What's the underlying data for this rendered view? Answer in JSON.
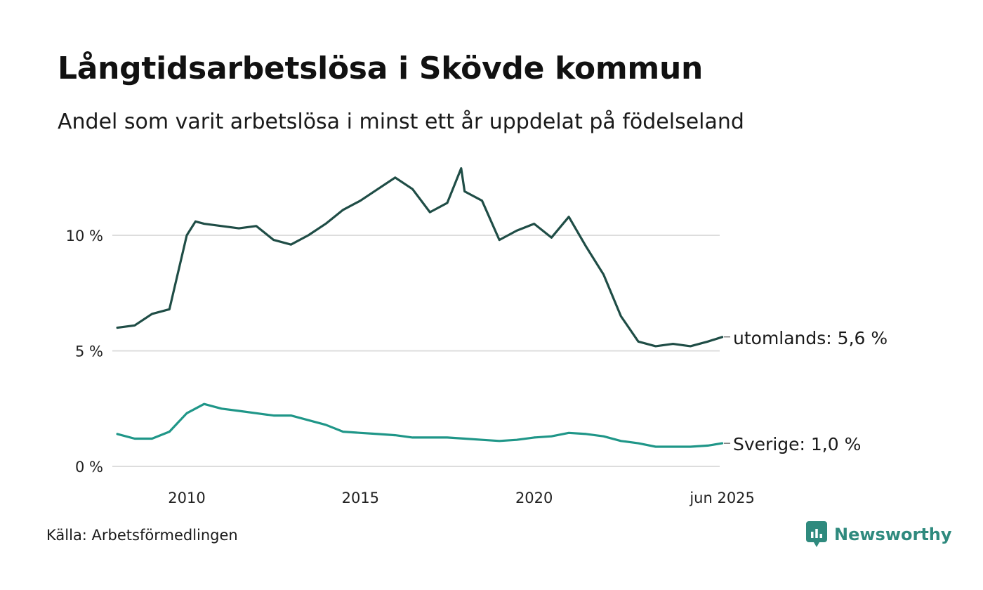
{
  "header": {
    "title": "Långtidsarbetslösa i Skövde kommun",
    "subtitle": "Andel som varit arbetslösa i minst ett år uppdelat på födelseland"
  },
  "footer": {
    "source": "Källa: Arbetsförmedlingen",
    "brand": "Newsworthy",
    "brand_icon": "newsworthy-logo-icon",
    "brand_color": "#2f8a7e"
  },
  "chart_data": {
    "type": "line",
    "x_tick_labels": [
      "2010",
      "2015",
      "2020",
      "jun 2025"
    ],
    "x_ticks": [
      2010,
      2015,
      2020,
      2025.417
    ],
    "xlim": [
      2008.0,
      2025.417
    ],
    "y_tick_labels": [
      "0 %",
      "5 %",
      "10 %"
    ],
    "y_ticks": [
      0,
      5,
      10
    ],
    "ylim": [
      0,
      13
    ],
    "grid": "horizontal",
    "legend": "direct labels at line ends",
    "series": [
      {
        "name": "utomlands",
        "end_label": "utomlands: 5,6 %",
        "color": "#1f4d46",
        "x": [
          2008.0,
          2008.5,
          2009.0,
          2009.5,
          2010.0,
          2010.25,
          2010.5,
          2011.0,
          2011.5,
          2012.0,
          2012.5,
          2013.0,
          2013.5,
          2014.0,
          2014.5,
          2015.0,
          2015.5,
          2016.0,
          2016.5,
          2017.0,
          2017.5,
          2017.9,
          2018.0,
          2018.5,
          2019.0,
          2019.5,
          2020.0,
          2020.5,
          2021.0,
          2021.5,
          2022.0,
          2022.5,
          2023.0,
          2023.5,
          2024.0,
          2024.5,
          2025.0,
          2025.417
        ],
        "values": [
          6.0,
          6.1,
          6.6,
          6.8,
          10.0,
          10.6,
          10.5,
          10.4,
          10.3,
          10.4,
          9.8,
          9.6,
          10.0,
          10.5,
          11.1,
          11.5,
          12.0,
          12.5,
          12.0,
          11.0,
          11.4,
          12.9,
          11.9,
          11.5,
          9.8,
          10.2,
          10.5,
          9.9,
          10.8,
          9.5,
          8.3,
          6.5,
          5.4,
          5.2,
          5.3,
          5.2,
          5.4,
          5.6
        ]
      },
      {
        "name": "Sverige",
        "end_label": "Sverige: 1,0 %",
        "color": "#1f9688",
        "x": [
          2008.0,
          2008.5,
          2009.0,
          2009.5,
          2010.0,
          2010.5,
          2011.0,
          2011.5,
          2012.0,
          2012.5,
          2013.0,
          2013.5,
          2014.0,
          2014.5,
          2015.0,
          2015.5,
          2016.0,
          2016.5,
          2017.0,
          2017.5,
          2018.0,
          2018.5,
          2019.0,
          2019.5,
          2020.0,
          2020.5,
          2021.0,
          2021.5,
          2022.0,
          2022.5,
          2023.0,
          2023.5,
          2024.0,
          2024.5,
          2025.0,
          2025.417
        ],
        "values": [
          1.4,
          1.2,
          1.2,
          1.5,
          2.3,
          2.7,
          2.5,
          2.4,
          2.3,
          2.2,
          2.2,
          2.0,
          1.8,
          1.5,
          1.45,
          1.4,
          1.35,
          1.25,
          1.25,
          1.25,
          1.2,
          1.15,
          1.1,
          1.15,
          1.25,
          1.3,
          1.45,
          1.4,
          1.3,
          1.1,
          1.0,
          0.85,
          0.85,
          0.85,
          0.9,
          1.0
        ]
      }
    ]
  }
}
